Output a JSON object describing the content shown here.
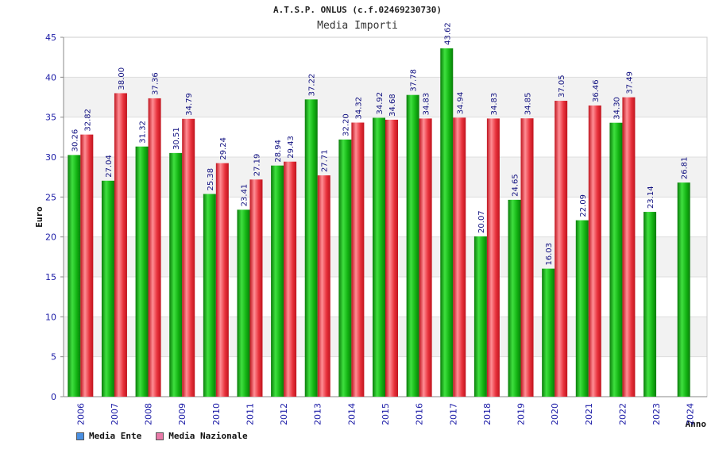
{
  "header": {
    "title": "A.T.S.P. ONLUS (c.f.02469230730)",
    "subtitle": "Media Importi"
  },
  "legend": [
    {
      "label": "Media Ente",
      "color": "#4a90e2"
    },
    {
      "label": "Media Nazionale",
      "color": "#e87aa8"
    }
  ],
  "colors": {
    "ente_bar": "#13b313",
    "nazionale_bar": "#e8323c",
    "axis_text": "#1a1aa6",
    "value_label": "#101080",
    "band": "#f2f2f2"
  },
  "chart_data": {
    "type": "bar",
    "title": "Media Importi",
    "xlabel": "Anno",
    "ylabel": "Euro",
    "ylim": [
      0,
      45
    ],
    "yticks": [
      0,
      5,
      10,
      15,
      20,
      25,
      30,
      35,
      40,
      45
    ],
    "grid": true,
    "legend_position": "bottom-left",
    "categories": [
      "2006",
      "2007",
      "2008",
      "2009",
      "2010",
      "2011",
      "2012",
      "2013",
      "2014",
      "2015",
      "2016",
      "2017",
      "2018",
      "2019",
      "2020",
      "2021",
      "2022",
      "2023",
      "2024"
    ],
    "series": [
      {
        "name": "Media Ente",
        "values": [
          30.26,
          27.04,
          31.32,
          30.51,
          25.38,
          23.41,
          28.94,
          37.22,
          32.2,
          34.92,
          37.78,
          43.62,
          20.07,
          24.65,
          16.03,
          22.09,
          34.3,
          23.14,
          26.81
        ],
        "labels": [
          "30.26",
          "27.04",
          "31.32",
          "30.51",
          "25.38",
          "23.41",
          "28.94",
          "37.22",
          "32.20",
          "34.92",
          "37.78",
          "43.62",
          "20.07",
          "24.65",
          "16.03",
          "22.09",
          "34.30",
          "23.14",
          "26.81"
        ]
      },
      {
        "name": "Media Nazionale",
        "values": [
          32.82,
          38.0,
          37.36,
          34.79,
          29.24,
          27.19,
          29.43,
          27.71,
          34.32,
          34.68,
          34.83,
          34.94,
          34.83,
          34.85,
          37.05,
          36.46,
          37.49,
          null,
          null
        ],
        "labels": [
          "32.82",
          "38.00",
          "37.36",
          "34.79",
          "29.24",
          "27.19",
          "29.43",
          "27.71",
          "34.32",
          "34.68",
          "34.83",
          "34.94",
          "34.83",
          "34.85",
          "37.05",
          "36.46",
          "37.49",
          null,
          null
        ]
      }
    ]
  }
}
